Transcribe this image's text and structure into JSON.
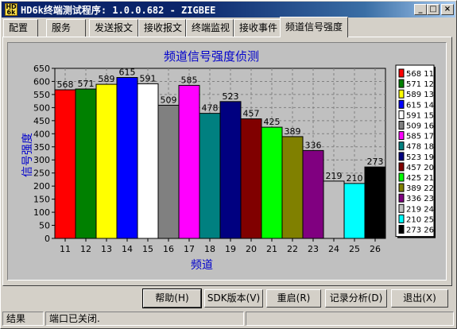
{
  "window": {
    "title": "HD6k终端测试程序: 1.0.0.682 - ZIGBEE",
    "icon": "app-icon",
    "buttons": [
      "minimize",
      "maximize",
      "close"
    ]
  },
  "tabs": [
    {
      "label": "配置",
      "active": false
    },
    {
      "label": "服务",
      "active": false
    },
    {
      "label": "发送报文",
      "active": false
    },
    {
      "label": "接收报文",
      "active": false
    },
    {
      "label": "终端监视",
      "active": false
    },
    {
      "label": "接收事件",
      "active": false
    },
    {
      "label": "频道信号强度",
      "active": true
    }
  ],
  "chart_data": {
    "type": "bar",
    "title": "频道信号强度侦测",
    "xlabel": "频道",
    "ylabel": "信号强度",
    "ylim": [
      0,
      650
    ],
    "yticks": [
      0,
      50,
      100,
      150,
      200,
      250,
      300,
      350,
      400,
      450,
      500,
      550,
      600,
      650
    ],
    "grid": true,
    "legend_position": "right",
    "categories": [
      "11",
      "12",
      "13",
      "14",
      "15",
      "16",
      "17",
      "18",
      "19",
      "20",
      "21",
      "22",
      "23",
      "24",
      "25",
      "26"
    ],
    "values": [
      568,
      571,
      589,
      615,
      591,
      509,
      585,
      478,
      523,
      457,
      425,
      389,
      336,
      219,
      210,
      273
    ],
    "colors": [
      "#ff0000",
      "#008000",
      "#ffff00",
      "#0000ff",
      "#ffffff",
      "#808080",
      "#ff00ff",
      "#008080",
      "#000080",
      "#800000",
      "#00ff00",
      "#808000",
      "#800080",
      "#c0c0c0",
      "#00ffff",
      "#000000"
    ],
    "legend": [
      "568 11",
      "571 12",
      "589 13",
      "615 14",
      "591 15",
      "509 16",
      "585 17",
      "478 18",
      "523 19",
      "457 20",
      "425 21",
      "389 22",
      "336 23",
      "219 24",
      "210 25",
      "273 26"
    ]
  },
  "actions": {
    "help": "帮助(H)",
    "sdk": "SDK版本(V)",
    "restart": "重启(R)",
    "log": "记录分析(D)",
    "exit": "退出(X)"
  },
  "status": {
    "result_label": "结果",
    "message": "端口已关闭."
  },
  "colors": {
    "title_text": "#0000cc",
    "titlebar": "#0a246a"
  }
}
